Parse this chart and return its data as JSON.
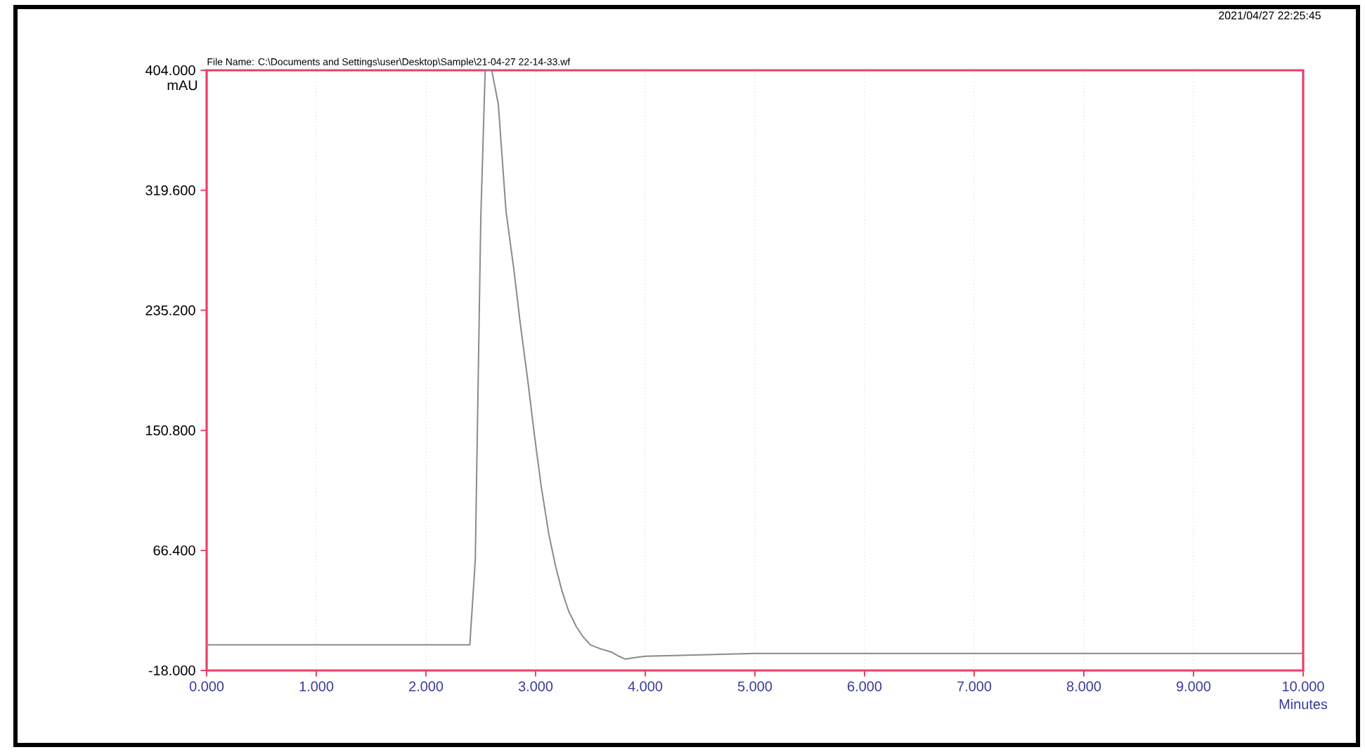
{
  "chart_data": {
    "type": "line",
    "title": "File Name: C:\\Documents and Settings\\user\\Desktop\\Sample\\21-04-27 22-14-33.wf",
    "annotations": [
      "2021/04/27 22:25:45"
    ],
    "xlabel": "Minutes",
    "ylabel": "mAU",
    "xlim": [
      0,
      10
    ],
    "ylim": [
      -18,
      404
    ],
    "xticks": [
      {
        "value": 0,
        "label": "0.000"
      },
      {
        "value": 1,
        "label": "1.000"
      },
      {
        "value": 2,
        "label": "2.000"
      },
      {
        "value": 3,
        "label": "3.000"
      },
      {
        "value": 4,
        "label": "4.000"
      },
      {
        "value": 5,
        "label": "5.000"
      },
      {
        "value": 6,
        "label": "6.000"
      },
      {
        "value": 7,
        "label": "7.000"
      },
      {
        "value": 8,
        "label": "8.000"
      },
      {
        "value": 9,
        "label": "9.000"
      },
      {
        "value": 10,
        "label": "10.000"
      }
    ],
    "yticks": [
      {
        "value": -18,
        "label": "-18.000"
      },
      {
        "value": 66.4,
        "label": "66.400"
      },
      {
        "value": 150.8,
        "label": "150.800"
      },
      {
        "value": 235.2,
        "label": "235.200"
      },
      {
        "value": 319.6,
        "label": "319.600"
      },
      {
        "value": 404,
        "label": "404.000"
      }
    ],
    "grid": "x",
    "marker": "none",
    "line_style": "solid",
    "series": [
      {
        "color": "#8a8a8a",
        "x": [
          0,
          0.5,
          1,
          1.5,
          2,
          2.4,
          2.45,
          2.5,
          2.54,
          2.6,
          2.66,
          2.73,
          2.8,
          2.86,
          2.93,
          2.99,
          3.05,
          3.12,
          3.18,
          3.24,
          3.3,
          3.37,
          3.43,
          3.5,
          3.6,
          3.69,
          3.76,
          3.82,
          3.9,
          4.0,
          4.5,
          5,
          6,
          7,
          8,
          9,
          10
        ],
        "values": [
          0,
          0,
          0,
          0,
          0,
          0,
          60,
          300,
          404,
          404,
          380,
          305,
          265,
          226,
          185,
          147,
          112,
          78,
          56,
          38,
          24,
          13,
          6,
          0,
          -3,
          -5,
          -8,
          -10,
          -9,
          -8,
          -7,
          -6,
          -6,
          -6,
          -6,
          -6,
          -6
        ]
      }
    ]
  }
}
